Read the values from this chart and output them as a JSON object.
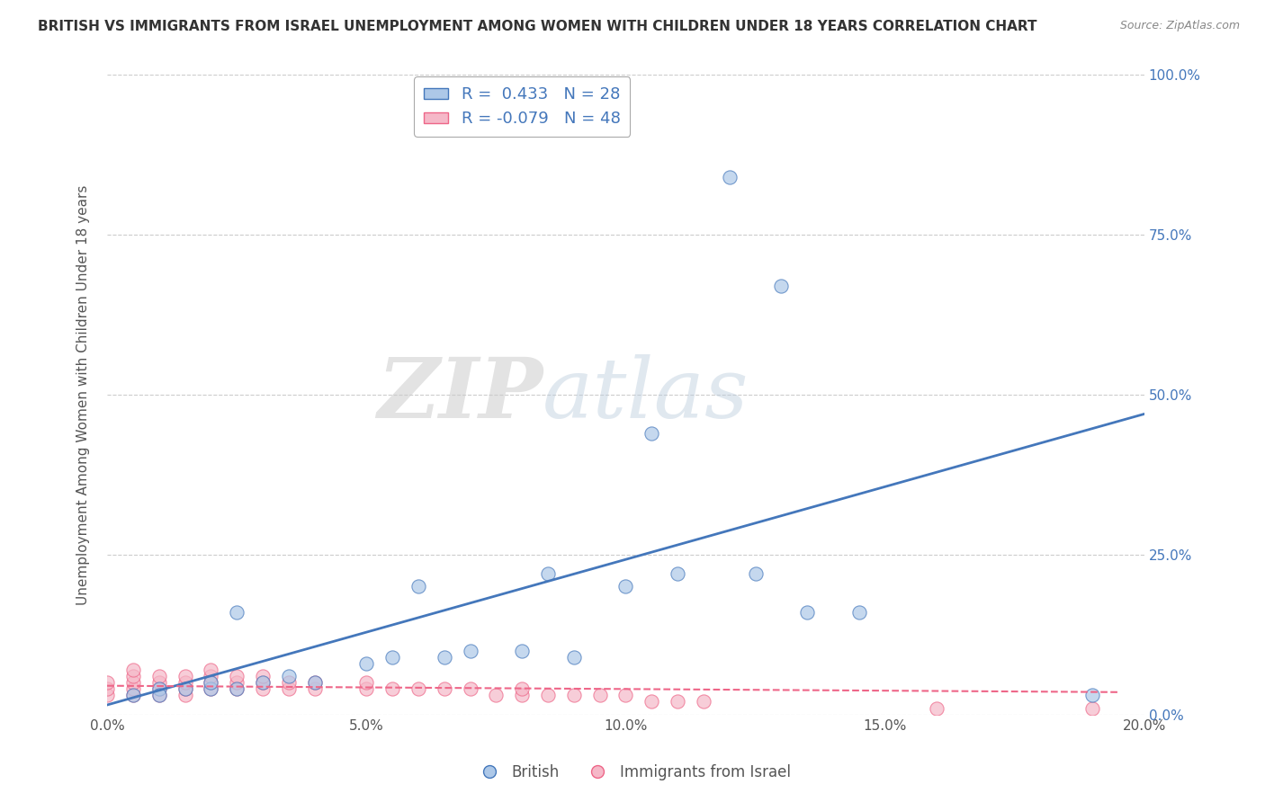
{
  "title": "BRITISH VS IMMIGRANTS FROM ISRAEL UNEMPLOYMENT AMONG WOMEN WITH CHILDREN UNDER 18 YEARS CORRELATION CHART",
  "source": "Source: ZipAtlas.com",
  "ylabel": "Unemployment Among Women with Children Under 18 years",
  "xlabel": "",
  "r_british": 0.433,
  "n_british": 28,
  "r_israel": -0.079,
  "n_israel": 48,
  "british_color": "#adc8e8",
  "israel_color": "#f5b8c8",
  "british_line_color": "#4477bb",
  "israel_line_color": "#ee6688",
  "xlim": [
    0.0,
    0.2
  ],
  "ylim": [
    0.0,
    1.0
  ],
  "xtick_labels": [
    "0.0%",
    "5.0%",
    "10.0%",
    "15.0%",
    "20.0%"
  ],
  "xtick_values": [
    0.0,
    0.05,
    0.1,
    0.15,
    0.2
  ],
  "ytick_labels": [
    "0.0%",
    "25.0%",
    "50.0%",
    "75.0%",
    "100.0%"
  ],
  "ytick_values": [
    0.0,
    0.25,
    0.5,
    0.75,
    1.0
  ],
  "background_color": "#ffffff",
  "watermark": "ZIPatlas",
  "british_scatter_x": [
    0.005,
    0.01,
    0.01,
    0.015,
    0.02,
    0.02,
    0.025,
    0.025,
    0.03,
    0.035,
    0.04,
    0.05,
    0.055,
    0.06,
    0.065,
    0.07,
    0.08,
    0.085,
    0.09,
    0.1,
    0.105,
    0.11,
    0.12,
    0.125,
    0.13,
    0.135,
    0.145,
    0.19
  ],
  "british_scatter_y": [
    0.03,
    0.04,
    0.03,
    0.04,
    0.04,
    0.05,
    0.04,
    0.16,
    0.05,
    0.06,
    0.05,
    0.08,
    0.09,
    0.2,
    0.09,
    0.1,
    0.1,
    0.22,
    0.09,
    0.2,
    0.44,
    0.22,
    0.84,
    0.22,
    0.67,
    0.16,
    0.16,
    0.03
  ],
  "israel_scatter_x": [
    0.0,
    0.0,
    0.0,
    0.005,
    0.005,
    0.005,
    0.005,
    0.005,
    0.01,
    0.01,
    0.01,
    0.01,
    0.015,
    0.015,
    0.015,
    0.015,
    0.02,
    0.02,
    0.02,
    0.02,
    0.025,
    0.025,
    0.025,
    0.03,
    0.03,
    0.03,
    0.035,
    0.035,
    0.04,
    0.04,
    0.05,
    0.05,
    0.055,
    0.06,
    0.065,
    0.07,
    0.075,
    0.08,
    0.08,
    0.085,
    0.09,
    0.095,
    0.1,
    0.105,
    0.11,
    0.115,
    0.16,
    0.19
  ],
  "israel_scatter_y": [
    0.03,
    0.04,
    0.05,
    0.03,
    0.04,
    0.05,
    0.06,
    0.07,
    0.03,
    0.04,
    0.05,
    0.06,
    0.03,
    0.04,
    0.05,
    0.06,
    0.04,
    0.05,
    0.06,
    0.07,
    0.04,
    0.05,
    0.06,
    0.04,
    0.05,
    0.06,
    0.04,
    0.05,
    0.04,
    0.05,
    0.04,
    0.05,
    0.04,
    0.04,
    0.04,
    0.04,
    0.03,
    0.03,
    0.04,
    0.03,
    0.03,
    0.03,
    0.03,
    0.02,
    0.02,
    0.02,
    0.01,
    0.01
  ],
  "british_trend_x": [
    0.0,
    0.2
  ],
  "british_trend_y": [
    0.015,
    0.47
  ],
  "israel_trend_x": [
    0.0,
    0.195
  ],
  "israel_trend_y": [
    0.045,
    0.035
  ]
}
